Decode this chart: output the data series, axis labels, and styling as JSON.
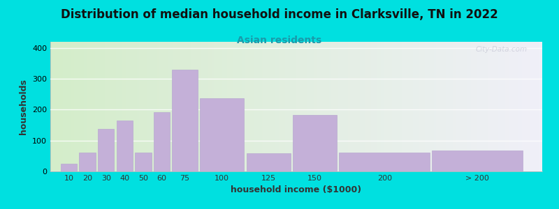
{
  "title": "Distribution of median household income in Clarksville, TN in 2022",
  "subtitle": "Asian residents",
  "xlabel": "household income ($1000)",
  "ylabel": "households",
  "bar_color": "#c4b0d8",
  "bar_edgecolor": "#b8a8d0",
  "background_outer": "#00e0e0",
  "background_inner_left": "#d4edca",
  "background_inner_right": "#f0f0f8",
  "categories": [
    "10",
    "20",
    "30",
    "40",
    "50",
    "60",
    "75",
    "100",
    "125",
    "150",
    "200",
    "> 200"
  ],
  "values": [
    25,
    60,
    137,
    165,
    62,
    192,
    330,
    237,
    58,
    183,
    60,
    67
  ],
  "bar_widths": [
    10,
    10,
    10,
    10,
    10,
    10,
    15,
    25,
    25,
    25,
    50,
    50
  ],
  "bar_lefts": [
    5,
    15,
    25,
    35,
    45,
    55,
    65,
    80,
    105,
    130,
    155,
    205
  ],
  "ylim": [
    0,
    420
  ],
  "yticks": [
    0,
    100,
    200,
    300,
    400
  ],
  "xlim": [
    0,
    265
  ],
  "watermark": "City-Data.com",
  "title_fontsize": 12,
  "subtitle_fontsize": 10,
  "axis_label_fontsize": 9,
  "tick_fontsize": 8
}
